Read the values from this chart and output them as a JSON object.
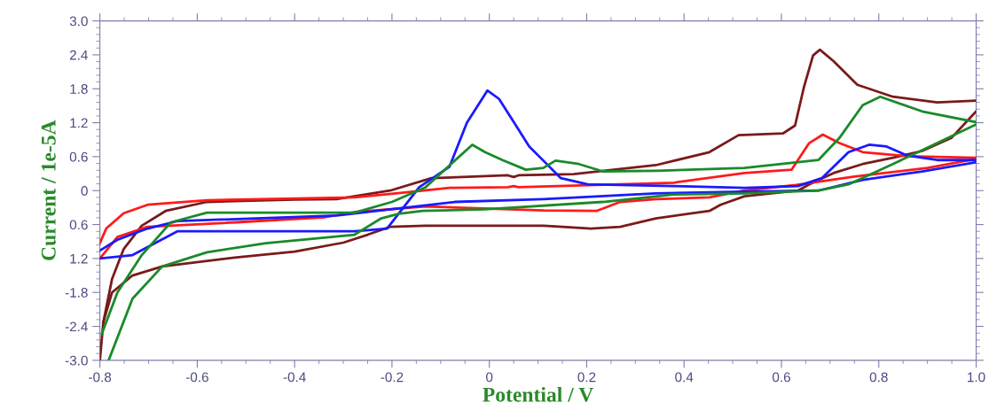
{
  "chart_data": {
    "type": "line",
    "xlabel": "Potential / V",
    "ylabel": "Current / 1e-5A",
    "xlim": [
      -0.8,
      1.0
    ],
    "xticks": [
      -0.8,
      -0.6,
      -0.4,
      -0.2,
      0,
      0.2,
      0.4,
      0.6,
      0.8,
      {
        "value": 1.0,
        "label": "1.0"
      }
    ],
    "ylim": [
      -3.0,
      3.0
    ],
    "yticks": [
      {
        "value": 3.0,
        "label": "3.0"
      },
      2.4,
      1.8,
      1.2,
      0.6,
      0,
      {
        "value": -0.6,
        "label": "0.6"
      },
      {
        "value": -1.2,
        "label": "1.2"
      },
      -1.8,
      -2.4,
      {
        "value": -3.0,
        "label": "-3.0"
      }
    ],
    "grid": false,
    "marker": "none",
    "line_style": "solid",
    "series": [
      {
        "color": "#7a1a1a",
        "x": [
          -0.8,
          -0.793,
          -0.775,
          -0.751,
          -0.714,
          -0.665,
          -0.58,
          -0.4,
          -0.314,
          -0.204,
          -0.119,
          0.038,
          0.05,
          0.06,
          0.173,
          0.342,
          0.452,
          0.512,
          0.603,
          0.628,
          0.646,
          0.665,
          0.679,
          0.707,
          0.756,
          0.829,
          0.92,
          1.0
        ],
        "values": [
          -3.0,
          -2.33,
          -1.56,
          -1.03,
          -0.62,
          -0.36,
          -0.2,
          -0.16,
          -0.15,
          0.0,
          0.22,
          0.27,
          0.24,
          0.27,
          0.29,
          0.45,
          0.68,
          0.98,
          1.01,
          1.15,
          1.82,
          2.39,
          2.49,
          2.29,
          1.87,
          1.66,
          1.56,
          1.59
        ]
      },
      {
        "color": "#7a1a1a",
        "x": [
          -0.793,
          -0.775,
          -0.733,
          -0.672,
          -0.519,
          -0.4,
          -0.3,
          -0.25,
          -0.204,
          -0.131,
          0.111,
          0.209,
          0.269,
          0.342,
          0.452,
          0.475,
          0.524,
          0.634,
          0.657,
          0.707,
          0.767,
          0.829,
          0.889,
          0.949,
          1.0
        ],
        "values": [
          -2.33,
          -1.8,
          -1.5,
          -1.34,
          -1.18,
          -1.08,
          -0.92,
          -0.78,
          -0.64,
          -0.62,
          -0.62,
          -0.67,
          -0.64,
          -0.49,
          -0.36,
          -0.25,
          -0.1,
          0.0,
          0.11,
          0.31,
          0.47,
          0.58,
          0.7,
          0.93,
          1.4
        ]
      },
      {
        "color": "#ff1a1a",
        "x": [
          -0.8,
          -0.787,
          -0.751,
          -0.702,
          -0.58,
          -0.277,
          -0.192,
          -0.082,
          0.038,
          0.05,
          0.06,
          0.379,
          0.524,
          0.621,
          0.657,
          0.685,
          0.719,
          0.767,
          0.858,
          1.0
        ],
        "values": [
          -0.93,
          -0.67,
          -0.4,
          -0.25,
          -0.17,
          -0.12,
          -0.05,
          0.05,
          0.06,
          0.08,
          0.06,
          0.14,
          0.31,
          0.37,
          0.84,
          0.99,
          0.84,
          0.68,
          0.61,
          0.58
        ]
      },
      {
        "color": "#ff1a1a",
        "x": [
          -0.8,
          -0.764,
          -0.702,
          -0.519,
          -0.337,
          -0.277,
          -0.131,
          0.111,
          0.22,
          0.269,
          0.342,
          0.452,
          0.524,
          0.63,
          0.75,
          0.9,
          1.0
        ],
        "values": [
          -1.2,
          -0.82,
          -0.64,
          -0.56,
          -0.47,
          -0.38,
          -0.28,
          -0.35,
          -0.36,
          -0.2,
          -0.15,
          -0.12,
          0.0,
          0.1,
          0.25,
          0.4,
          0.56
        ]
      },
      {
        "color": "#1a1aff",
        "x": [
          -0.8,
          -0.733,
          -0.641,
          -0.277,
          -0.21,
          -0.144,
          -0.082,
          -0.046,
          -0.004,
          0.02,
          0.051,
          0.082,
          0.111,
          0.147,
          0.202,
          0.379,
          0.524,
          0.634,
          0.683,
          0.738,
          0.78,
          0.816,
          0.858,
          0.92,
          1.0
        ],
        "values": [
          -1.2,
          -1.14,
          -0.72,
          -0.72,
          -0.67,
          0.06,
          0.42,
          1.2,
          1.77,
          1.62,
          1.2,
          0.78,
          0.53,
          0.22,
          0.11,
          0.08,
          0.05,
          0.08,
          0.22,
          0.68,
          0.81,
          0.78,
          0.62,
          0.54,
          0.54
        ]
      },
      {
        "color": "#1a1aff",
        "x": [
          -0.8,
          -0.764,
          -0.702,
          -0.641,
          -0.314,
          -0.071,
          0.111,
          0.342,
          0.524,
          0.676,
          0.767,
          0.889,
          1.0
        ],
        "values": [
          -1.06,
          -0.87,
          -0.67,
          -0.54,
          -0.44,
          -0.2,
          -0.15,
          -0.05,
          -0.02,
          0.0,
          0.19,
          0.34,
          0.5
        ]
      },
      {
        "color": "#1a8a2a",
        "x": [
          -0.782,
          -0.733,
          -0.672,
          -0.58,
          -0.459,
          -0.277,
          -0.222,
          -0.186,
          -0.137,
          -0.009,
          0.233,
          0.379,
          0.524,
          0.676,
          0.738,
          0.829,
          0.92,
          1.0
        ],
        "values": [
          -3.0,
          -1.91,
          -1.34,
          -1.09,
          -0.93,
          -0.78,
          -0.49,
          -0.41,
          -0.36,
          -0.33,
          -0.2,
          -0.07,
          -0.05,
          0.0,
          0.11,
          0.47,
          0.84,
          1.17
        ]
      },
      {
        "color": "#1a8a2a",
        "x": [
          -0.796,
          -0.764,
          -0.714,
          -0.654,
          -0.58,
          -0.277,
          -0.2,
          -0.131,
          -0.071,
          -0.035,
          -0.009,
          0.027,
          0.075,
          0.111,
          0.136,
          0.184,
          0.233,
          0.342,
          0.524,
          0.676,
          0.719,
          0.767,
          0.803,
          0.889,
          1.0
        ],
        "values": [
          -2.53,
          -1.8,
          -1.14,
          -0.56,
          -0.39,
          -0.39,
          -0.2,
          0.06,
          0.53,
          0.81,
          0.68,
          0.54,
          0.37,
          0.4,
          0.53,
          0.47,
          0.34,
          0.35,
          0.4,
          0.54,
          0.93,
          1.51,
          1.66,
          1.4,
          1.21
        ]
      }
    ]
  }
}
